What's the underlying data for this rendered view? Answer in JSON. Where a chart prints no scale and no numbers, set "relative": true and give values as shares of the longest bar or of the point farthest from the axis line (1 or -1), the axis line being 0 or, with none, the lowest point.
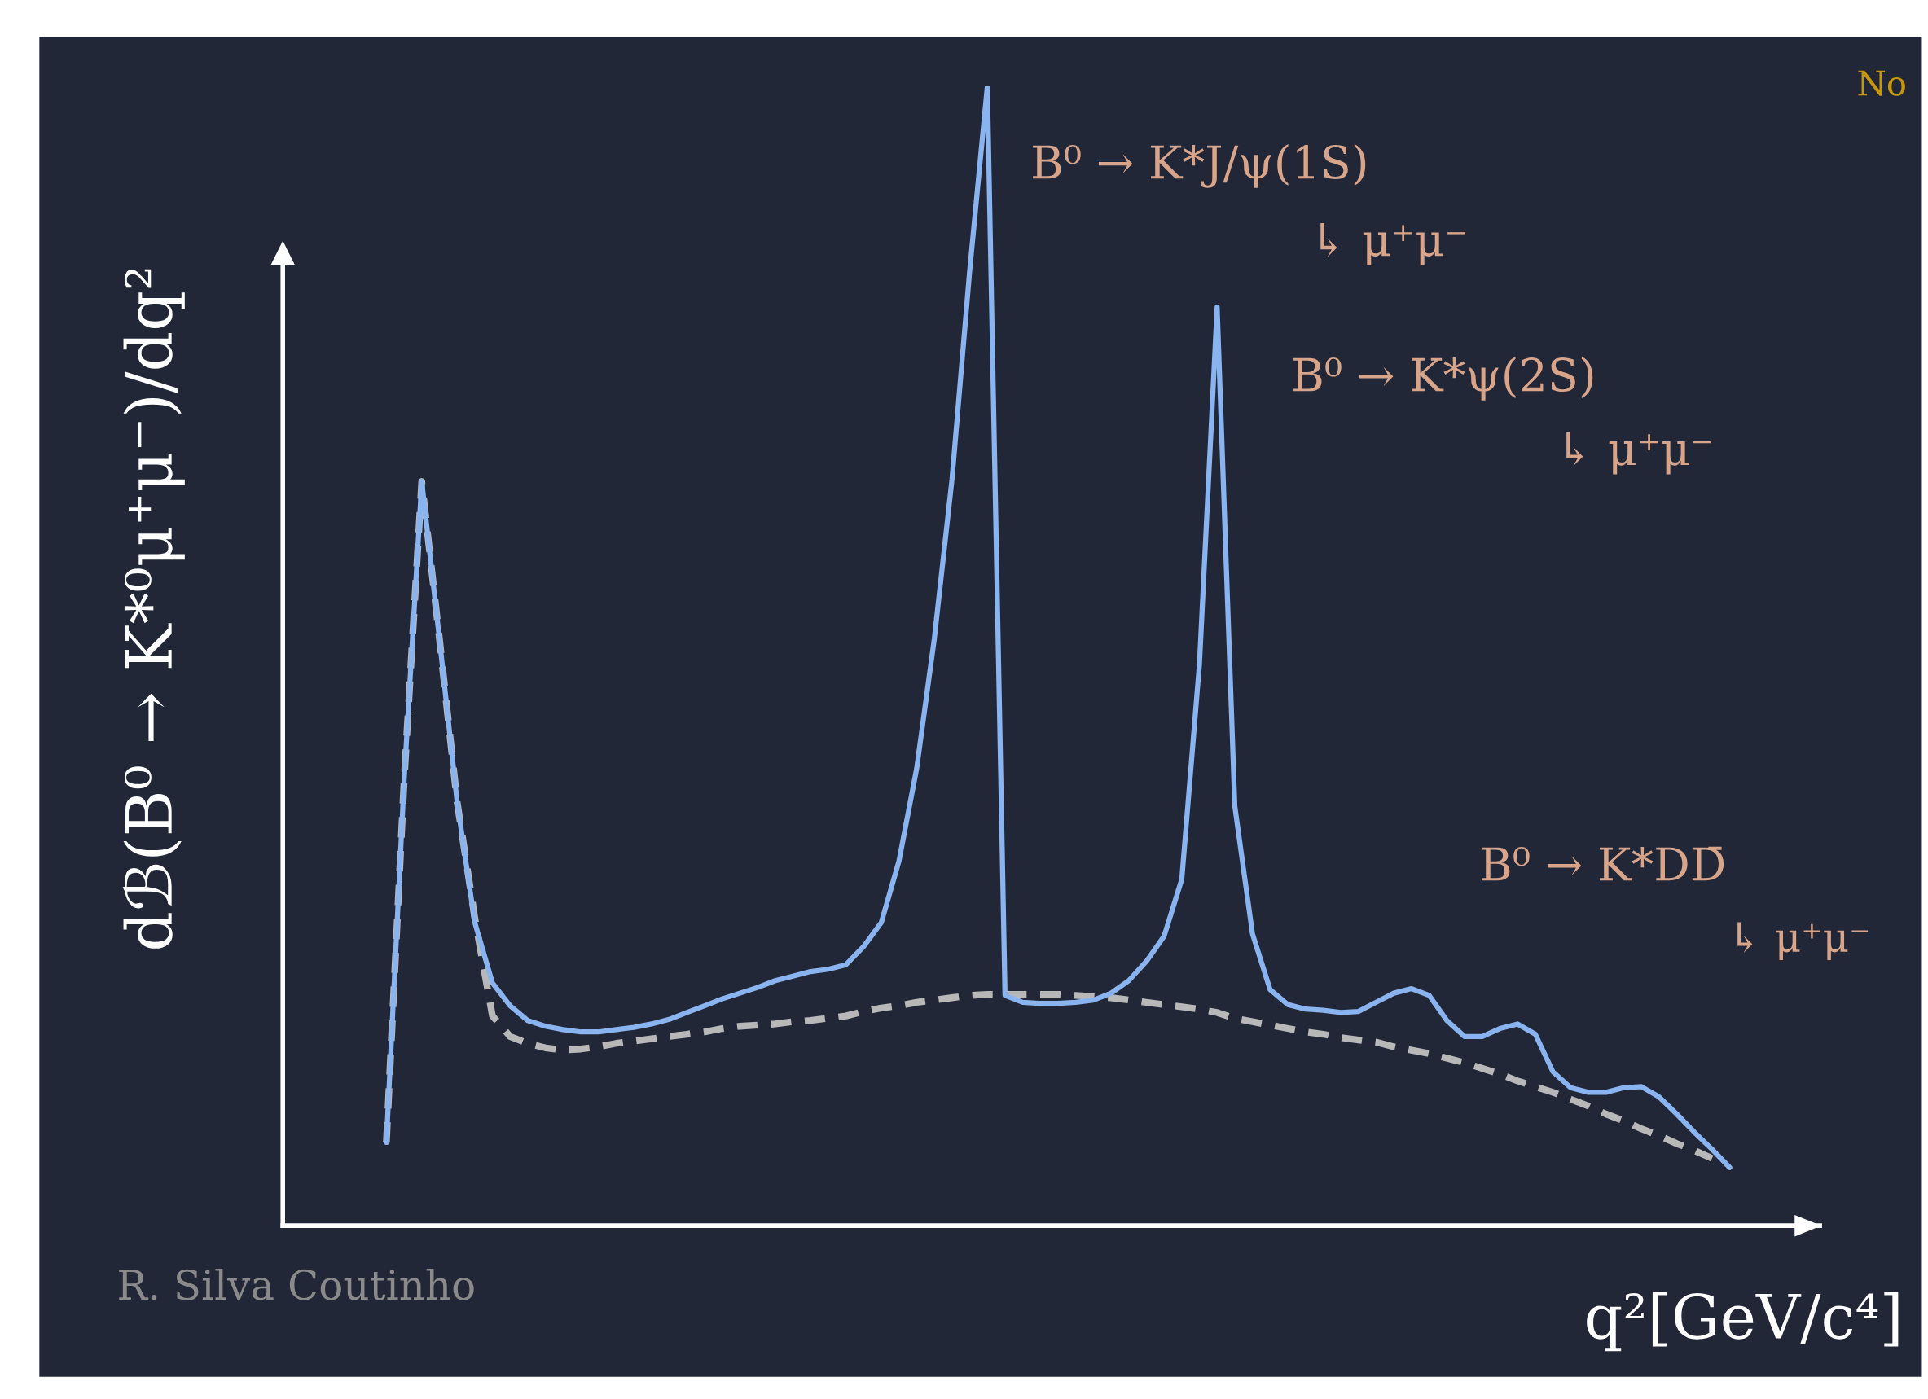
{
  "chart_data": {
    "type": "line",
    "relative": true,
    "xlabel": "q²[GeV/c⁴]",
    "ylabel": "dℬ(B⁰ → K*⁰μ⁺μ⁻)/dq²",
    "categories": [
      null,
      null,
      null,
      null,
      null,
      null,
      null,
      null,
      null,
      null,
      null,
      null,
      null,
      null,
      null,
      null,
      null,
      null,
      null,
      null,
      null,
      null,
      null,
      null,
      null,
      null,
      null,
      null,
      null,
      null,
      null,
      null,
      null,
      null,
      null,
      null,
      null,
      null,
      null,
      null,
      null,
      null,
      null,
      null,
      null,
      null,
      null,
      null,
      null,
      null,
      null,
      null,
      null,
      null,
      null,
      null,
      null,
      null,
      null,
      null,
      null,
      null,
      null,
      null,
      null,
      null,
      null,
      null,
      null,
      null,
      null,
      null,
      null,
      null,
      null,
      null,
      null
    ],
    "series": [
      {
        "color": "#b8b8b8",
        "line_style": "dashed",
        "values": [
          0.073,
          0.39,
          0.653,
          0.515,
          0.372,
          0.27,
          0.184,
          0.166,
          0.16,
          0.156,
          0.154,
          0.155,
          0.157,
          0.16,
          0.162,
          0.164,
          0.166,
          0.168,
          0.17,
          0.173,
          0.175,
          0.176,
          0.177,
          0.179,
          0.18,
          0.182,
          0.184,
          0.188,
          0.191,
          0.193,
          0.196,
          0.198,
          0.2,
          0.202,
          0.203,
          0.203,
          0.203,
          0.203,
          0.203,
          0.202,
          0.201,
          0.2,
          0.198,
          0.196,
          0.194,
          0.192,
          0.19,
          0.187,
          0.182,
          0.179,
          0.176,
          0.173,
          0.17,
          0.168,
          0.165,
          0.163,
          0.161,
          0.157,
          0.154,
          0.151,
          0.147,
          0.143,
          0.138,
          0.133,
          0.127,
          0.122,
          0.117,
          0.111,
          0.105,
          0.098,
          0.092,
          0.085,
          0.079,
          0.072,
          0.066,
          0.059,
          null
        ]
      },
      {
        "color": "#8ab4f0",
        "line_style": "solid",
        "values": [
          0.073,
          0.39,
          0.653,
          0.515,
          0.372,
          0.266,
          0.213,
          0.193,
          0.18,
          0.175,
          0.172,
          0.17,
          0.17,
          0.172,
          0.174,
          0.177,
          0.181,
          0.187,
          0.193,
          0.199,
          0.204,
          0.209,
          0.215,
          0.219,
          0.223,
          0.225,
          0.229,
          0.245,
          0.266,
          0.32,
          0.401,
          0.515,
          0.655,
          0.838,
          1.0,
          0.202,
          0.196,
          0.195,
          0.195,
          0.196,
          0.198,
          0.204,
          0.215,
          0.232,
          0.254,
          0.304,
          0.493,
          0.806,
          0.368,
          0.256,
          0.207,
          0.194,
          0.19,
          0.189,
          0.187,
          0.188,
          0.196,
          0.204,
          0.208,
          0.202,
          0.18,
          0.166,
          0.166,
          0.173,
          0.177,
          0.168,
          0.135,
          0.121,
          0.117,
          0.117,
          0.121,
          0.122,
          0.113,
          0.098,
          0.082,
          0.067,
          0.051
        ]
      }
    ],
    "annotations": [
      "B⁰ → K*J/ψ(1S)",
      "↳ μ⁺μ⁻",
      "B⁰ → K*ψ(2S)",
      "↳ μ⁺μ⁻",
      "B⁰ → K*DD̄",
      "↳ μ⁺μ⁻",
      "R. Silva Coutinho",
      "No"
    ]
  }
}
